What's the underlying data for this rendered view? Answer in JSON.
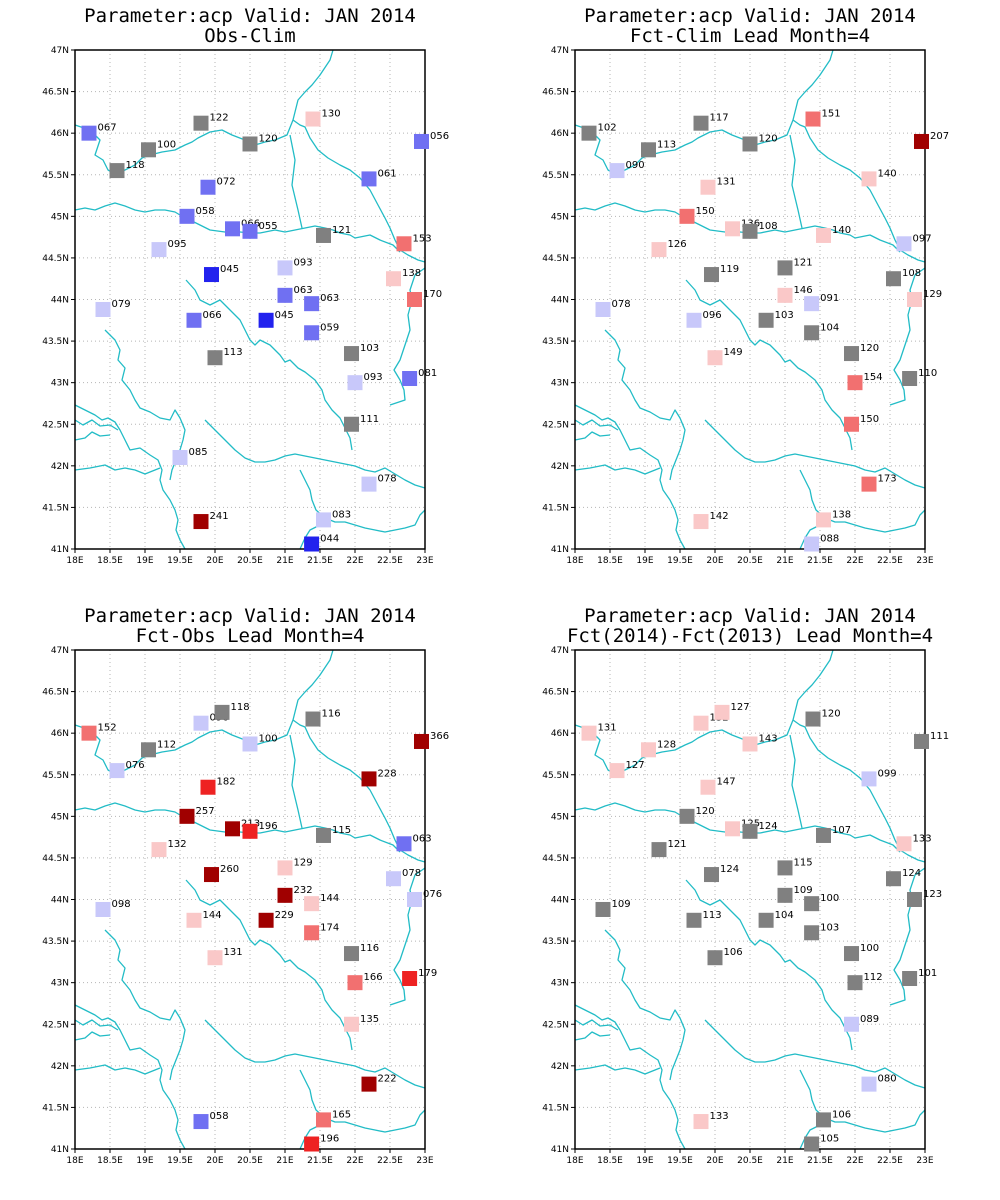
{
  "colors": {
    "coast": "#22bcc6",
    "grid": "#b5b5b5",
    "neutral": "#808080",
    "classes": {
      "deep_blue": "#2222ee",
      "blue": "#7070f2",
      "light_blue": "#c8c8fa",
      "gray": "#808080",
      "light_red": "#fac8c8",
      "red": "#f27070",
      "bright_red": "#ee2222",
      "dark_red": "#a00000"
    }
  },
  "axes": {
    "lon_min": 18,
    "lon_max": 23,
    "lat_min": 41,
    "lat_max": 47,
    "x_ticks": [
      "18E",
      "18.5E",
      "19E",
      "19.5E",
      "20E",
      "20.5E",
      "21E",
      "21.5E",
      "22E",
      "22.5E",
      "23E"
    ],
    "y_ticks": [
      "41N",
      "41.5N",
      "42N",
      "42.5N",
      "43N",
      "43.5N",
      "44N",
      "44.5N",
      "45N",
      "45.5N",
      "46N",
      "46.5N",
      "47N"
    ]
  },
  "panels": [
    {
      "title_line1": "Parameter:acp Valid: JAN 2014",
      "title_line2": "Obs-Clim",
      "stations": [
        {
          "lon": 18.2,
          "lat": 46.0,
          "label": "067",
          "class": "blue"
        },
        {
          "lon": 19.05,
          "lat": 45.8,
          "label": "100",
          "class": "gray"
        },
        {
          "lon": 18.6,
          "lat": 45.55,
          "label": "118",
          "class": "gray"
        },
        {
          "lon": 19.8,
          "lat": 46.12,
          "label": "122",
          "class": "gray"
        },
        {
          "lon": 20.5,
          "lat": 45.87,
          "label": "120",
          "class": "gray"
        },
        {
          "lon": 21.4,
          "lat": 46.17,
          "label": "130",
          "class": "light_red"
        },
        {
          "lon": 22.95,
          "lat": 45.9,
          "label": "056",
          "class": "blue"
        },
        {
          "lon": 22.2,
          "lat": 45.45,
          "label": "061",
          "class": "blue"
        },
        {
          "lon": 19.9,
          "lat": 45.35,
          "label": "072",
          "class": "blue"
        },
        {
          "lon": 19.6,
          "lat": 45.0,
          "label": "058",
          "class": "blue"
        },
        {
          "lon": 20.25,
          "lat": 44.85,
          "label": "066",
          "class": "blue"
        },
        {
          "lon": 20.5,
          "lat": 44.82,
          "label": "055",
          "class": "blue"
        },
        {
          "lon": 21.55,
          "lat": 44.77,
          "label": "121",
          "class": "gray"
        },
        {
          "lon": 22.7,
          "lat": 44.67,
          "label": "153",
          "class": "red"
        },
        {
          "lon": 19.2,
          "lat": 44.6,
          "label": "095",
          "class": "light_blue"
        },
        {
          "lon": 19.95,
          "lat": 44.3,
          "label": "045",
          "class": "deep_blue"
        },
        {
          "lon": 21.0,
          "lat": 44.38,
          "label": "093",
          "class": "light_blue"
        },
        {
          "lon": 22.55,
          "lat": 44.25,
          "label": "138",
          "class": "light_red"
        },
        {
          "lon": 21.0,
          "lat": 44.05,
          "label": "063",
          "class": "blue"
        },
        {
          "lon": 21.38,
          "lat": 43.95,
          "label": "063",
          "class": "blue"
        },
        {
          "lon": 22.85,
          "lat": 44.0,
          "label": "170",
          "class": "red"
        },
        {
          "lon": 18.4,
          "lat": 43.88,
          "label": "079",
          "class": "light_blue"
        },
        {
          "lon": 19.7,
          "lat": 43.75,
          "label": "066",
          "class": "blue"
        },
        {
          "lon": 20.73,
          "lat": 43.75,
          "label": "045",
          "class": "deep_blue"
        },
        {
          "lon": 21.38,
          "lat": 43.6,
          "label": "059",
          "class": "blue"
        },
        {
          "lon": 20.0,
          "lat": 43.3,
          "label": "113",
          "class": "gray"
        },
        {
          "lon": 21.95,
          "lat": 43.35,
          "label": "103",
          "class": "gray"
        },
        {
          "lon": 22.0,
          "lat": 43.0,
          "label": "093",
          "class": "light_blue"
        },
        {
          "lon": 22.78,
          "lat": 43.05,
          "label": "081",
          "class": "blue"
        },
        {
          "lon": 21.95,
          "lat": 42.5,
          "label": "111",
          "class": "gray"
        },
        {
          "lon": 19.5,
          "lat": 42.1,
          "label": "085",
          "class": "light_blue"
        },
        {
          "lon": 22.2,
          "lat": 41.78,
          "label": "078",
          "class": "light_blue"
        },
        {
          "lon": 19.8,
          "lat": 41.33,
          "label": "241",
          "class": "dark_red"
        },
        {
          "lon": 21.55,
          "lat": 41.35,
          "label": "083",
          "class": "light_blue"
        },
        {
          "lon": 21.38,
          "lat": 41.06,
          "label": "044",
          "class": "deep_blue"
        }
      ]
    },
    {
      "title_line1": "Parameter:acp Valid: JAN 2014",
      "title_line2": "Fct-Clim Lead Month=4",
      "stations": [
        {
          "lon": 18.2,
          "lat": 46.0,
          "label": "102",
          "class": "gray"
        },
        {
          "lon": 19.05,
          "lat": 45.8,
          "label": "113",
          "class": "gray"
        },
        {
          "lon": 18.6,
          "lat": 45.55,
          "label": "090",
          "class": "light_blue"
        },
        {
          "lon": 19.8,
          "lat": 46.12,
          "label": "117",
          "class": "gray"
        },
        {
          "lon": 20.5,
          "lat": 45.87,
          "label": "120",
          "class": "gray"
        },
        {
          "lon": 21.4,
          "lat": 46.17,
          "label": "151",
          "class": "red"
        },
        {
          "lon": 22.95,
          "lat": 45.9,
          "label": "207",
          "class": "dark_red"
        },
        {
          "lon": 22.2,
          "lat": 45.45,
          "label": "140",
          "class": "light_red"
        },
        {
          "lon": 19.9,
          "lat": 45.35,
          "label": "131",
          "class": "light_red"
        },
        {
          "lon": 19.6,
          "lat": 45.0,
          "label": "150",
          "class": "red"
        },
        {
          "lon": 20.25,
          "lat": 44.85,
          "label": "136",
          "class": "light_red"
        },
        {
          "lon": 20.5,
          "lat": 44.82,
          "label": "108",
          "class": "gray"
        },
        {
          "lon": 21.55,
          "lat": 44.77,
          "label": "140",
          "class": "light_red"
        },
        {
          "lon": 22.7,
          "lat": 44.67,
          "label": "097",
          "class": "light_blue"
        },
        {
          "lon": 19.2,
          "lat": 44.6,
          "label": "126",
          "class": "light_red"
        },
        {
          "lon": 19.95,
          "lat": 44.3,
          "label": "119",
          "class": "gray"
        },
        {
          "lon": 21.0,
          "lat": 44.38,
          "label": "121",
          "class": "gray"
        },
        {
          "lon": 22.55,
          "lat": 44.25,
          "label": "108",
          "class": "gray"
        },
        {
          "lon": 21.0,
          "lat": 44.05,
          "label": "146",
          "class": "light_red"
        },
        {
          "lon": 21.38,
          "lat": 43.95,
          "label": "091",
          "class": "light_blue"
        },
        {
          "lon": 22.85,
          "lat": 44.0,
          "label": "129",
          "class": "light_red"
        },
        {
          "lon": 18.4,
          "lat": 43.88,
          "label": "078",
          "class": "light_blue"
        },
        {
          "lon": 19.7,
          "lat": 43.75,
          "label": "096",
          "class": "light_blue"
        },
        {
          "lon": 20.73,
          "lat": 43.75,
          "label": "103",
          "class": "gray"
        },
        {
          "lon": 21.38,
          "lat": 43.6,
          "label": "104",
          "class": "gray"
        },
        {
          "lon": 20.0,
          "lat": 43.3,
          "label": "149",
          "class": "light_red"
        },
        {
          "lon": 21.95,
          "lat": 43.35,
          "label": "120",
          "class": "gray"
        },
        {
          "lon": 22.0,
          "lat": 43.0,
          "label": "154",
          "class": "red"
        },
        {
          "lon": 22.78,
          "lat": 43.05,
          "label": "110",
          "class": "gray"
        },
        {
          "lon": 21.95,
          "lat": 42.5,
          "label": "150",
          "class": "red"
        },
        {
          "lon": 22.2,
          "lat": 41.78,
          "label": "173",
          "class": "red"
        },
        {
          "lon": 19.8,
          "lat": 41.33,
          "label": "142",
          "class": "light_red"
        },
        {
          "lon": 21.55,
          "lat": 41.35,
          "label": "138",
          "class": "light_red"
        },
        {
          "lon": 21.38,
          "lat": 41.06,
          "label": "088",
          "class": "light_blue"
        }
      ]
    },
    {
      "title_line1": "Parameter:acp Valid: JAN 2014",
      "title_line2": "Fct-Obs Lead Month=4",
      "stations": [
        {
          "lon": 18.2,
          "lat": 46.0,
          "label": "152",
          "class": "red"
        },
        {
          "lon": 19.05,
          "lat": 45.8,
          "label": "112",
          "class": "gray"
        },
        {
          "lon": 18.6,
          "lat": 45.55,
          "label": "076",
          "class": "light_blue"
        },
        {
          "lon": 19.8,
          "lat": 46.12,
          "label": "096",
          "class": "light_blue"
        },
        {
          "lon": 20.1,
          "lat": 46.25,
          "label": "118",
          "class": "gray"
        },
        {
          "lon": 20.5,
          "lat": 45.87,
          "label": "100",
          "class": "light_blue"
        },
        {
          "lon": 21.4,
          "lat": 46.17,
          "label": "116",
          "class": "gray"
        },
        {
          "lon": 22.95,
          "lat": 45.9,
          "label": "366",
          "class": "dark_red"
        },
        {
          "lon": 22.2,
          "lat": 45.45,
          "label": "228",
          "class": "dark_red"
        },
        {
          "lon": 19.9,
          "lat": 45.35,
          "label": "182",
          "class": "bright_red"
        },
        {
          "lon": 19.6,
          "lat": 45.0,
          "label": "257",
          "class": "dark_red"
        },
        {
          "lon": 20.25,
          "lat": 44.85,
          "label": "213",
          "class": "dark_red"
        },
        {
          "lon": 20.5,
          "lat": 44.82,
          "label": "196",
          "class": "bright_red"
        },
        {
          "lon": 21.55,
          "lat": 44.77,
          "label": "115",
          "class": "gray"
        },
        {
          "lon": 22.7,
          "lat": 44.67,
          "label": "063",
          "class": "blue"
        },
        {
          "lon": 19.2,
          "lat": 44.6,
          "label": "132",
          "class": "light_red"
        },
        {
          "lon": 19.95,
          "lat": 44.3,
          "label": "260",
          "class": "dark_red"
        },
        {
          "lon": 21.0,
          "lat": 44.38,
          "label": "129",
          "class": "light_red"
        },
        {
          "lon": 22.55,
          "lat": 44.25,
          "label": "078",
          "class": "light_blue"
        },
        {
          "lon": 21.0,
          "lat": 44.05,
          "label": "232",
          "class": "dark_red"
        },
        {
          "lon": 21.38,
          "lat": 43.95,
          "label": "144",
          "class": "light_red"
        },
        {
          "lon": 22.85,
          "lat": 44.0,
          "label": "076",
          "class": "light_blue"
        },
        {
          "lon": 18.4,
          "lat": 43.88,
          "label": "098",
          "class": "light_blue"
        },
        {
          "lon": 19.7,
          "lat": 43.75,
          "label": "144",
          "class": "light_red"
        },
        {
          "lon": 20.73,
          "lat": 43.75,
          "label": "229",
          "class": "dark_red"
        },
        {
          "lon": 21.38,
          "lat": 43.6,
          "label": "174",
          "class": "red"
        },
        {
          "lon": 20.0,
          "lat": 43.3,
          "label": "131",
          "class": "light_red"
        },
        {
          "lon": 21.95,
          "lat": 43.35,
          "label": "116",
          "class": "gray"
        },
        {
          "lon": 22.0,
          "lat": 43.0,
          "label": "166",
          "class": "red"
        },
        {
          "lon": 22.78,
          "lat": 43.05,
          "label": "179",
          "class": "bright_red"
        },
        {
          "lon": 21.95,
          "lat": 42.5,
          "label": "135",
          "class": "light_red"
        },
        {
          "lon": 22.2,
          "lat": 41.78,
          "label": "222",
          "class": "dark_red"
        },
        {
          "lon": 19.8,
          "lat": 41.33,
          "label": "058",
          "class": "blue"
        },
        {
          "lon": 21.55,
          "lat": 41.35,
          "label": "165",
          "class": "red"
        },
        {
          "lon": 21.38,
          "lat": 41.06,
          "label": "196",
          "class": "bright_red"
        }
      ]
    },
    {
      "title_line1": "Parameter:acp Valid: JAN 2014",
      "title_line2": "Fct(2014)-Fct(2013) Lead Month=4",
      "stations": [
        {
          "lon": 18.2,
          "lat": 46.0,
          "label": "131",
          "class": "light_red"
        },
        {
          "lon": 19.05,
          "lat": 45.8,
          "label": "128",
          "class": "light_red"
        },
        {
          "lon": 18.6,
          "lat": 45.55,
          "label": "127",
          "class": "light_red"
        },
        {
          "lon": 19.8,
          "lat": 46.12,
          "label": "132",
          "class": "light_red"
        },
        {
          "lon": 20.1,
          "lat": 46.25,
          "label": "127",
          "class": "light_red"
        },
        {
          "lon": 20.5,
          "lat": 45.87,
          "label": "143",
          "class": "light_red"
        },
        {
          "lon": 21.4,
          "lat": 46.17,
          "label": "120",
          "class": "gray"
        },
        {
          "lon": 22.95,
          "lat": 45.9,
          "label": "111",
          "class": "gray"
        },
        {
          "lon": 22.2,
          "lat": 45.45,
          "label": "099",
          "class": "light_blue"
        },
        {
          "lon": 19.9,
          "lat": 45.35,
          "label": "147",
          "class": "light_red"
        },
        {
          "lon": 19.6,
          "lat": 45.0,
          "label": "120",
          "class": "gray"
        },
        {
          "lon": 20.25,
          "lat": 44.85,
          "label": "125",
          "class": "light_red"
        },
        {
          "lon": 20.5,
          "lat": 44.82,
          "label": "124",
          "class": "gray"
        },
        {
          "lon": 21.55,
          "lat": 44.77,
          "label": "107",
          "class": "gray"
        },
        {
          "lon": 22.7,
          "lat": 44.67,
          "label": "133",
          "class": "light_red"
        },
        {
          "lon": 19.2,
          "lat": 44.6,
          "label": "121",
          "class": "gray"
        },
        {
          "lon": 19.95,
          "lat": 44.3,
          "label": "124",
          "class": "gray"
        },
        {
          "lon": 21.0,
          "lat": 44.38,
          "label": "115",
          "class": "gray"
        },
        {
          "lon": 22.55,
          "lat": 44.25,
          "label": "124",
          "class": "gray"
        },
        {
          "lon": 21.0,
          "lat": 44.05,
          "label": "109",
          "class": "gray"
        },
        {
          "lon": 21.38,
          "lat": 43.95,
          "label": "100",
          "class": "gray"
        },
        {
          "lon": 22.85,
          "lat": 44.0,
          "label": "123",
          "class": "gray"
        },
        {
          "lon": 18.4,
          "lat": 43.88,
          "label": "109",
          "class": "gray"
        },
        {
          "lon": 19.7,
          "lat": 43.75,
          "label": "113",
          "class": "gray"
        },
        {
          "lon": 20.73,
          "lat": 43.75,
          "label": "104",
          "class": "gray"
        },
        {
          "lon": 21.38,
          "lat": 43.6,
          "label": "103",
          "class": "gray"
        },
        {
          "lon": 20.0,
          "lat": 43.3,
          "label": "106",
          "class": "gray"
        },
        {
          "lon": 21.95,
          "lat": 43.35,
          "label": "100",
          "class": "gray"
        },
        {
          "lon": 22.0,
          "lat": 43.0,
          "label": "112",
          "class": "gray"
        },
        {
          "lon": 22.78,
          "lat": 43.05,
          "label": "101",
          "class": "gray"
        },
        {
          "lon": 21.95,
          "lat": 42.5,
          "label": "089",
          "class": "light_blue"
        },
        {
          "lon": 22.2,
          "lat": 41.78,
          "label": "080",
          "class": "light_blue"
        },
        {
          "lon": 19.8,
          "lat": 41.33,
          "label": "133",
          "class": "light_red"
        },
        {
          "lon": 21.55,
          "lat": 41.35,
          "label": "106",
          "class": "gray"
        },
        {
          "lon": 21.38,
          "lat": 41.06,
          "label": "105",
          "class": "gray"
        }
      ]
    }
  ]
}
